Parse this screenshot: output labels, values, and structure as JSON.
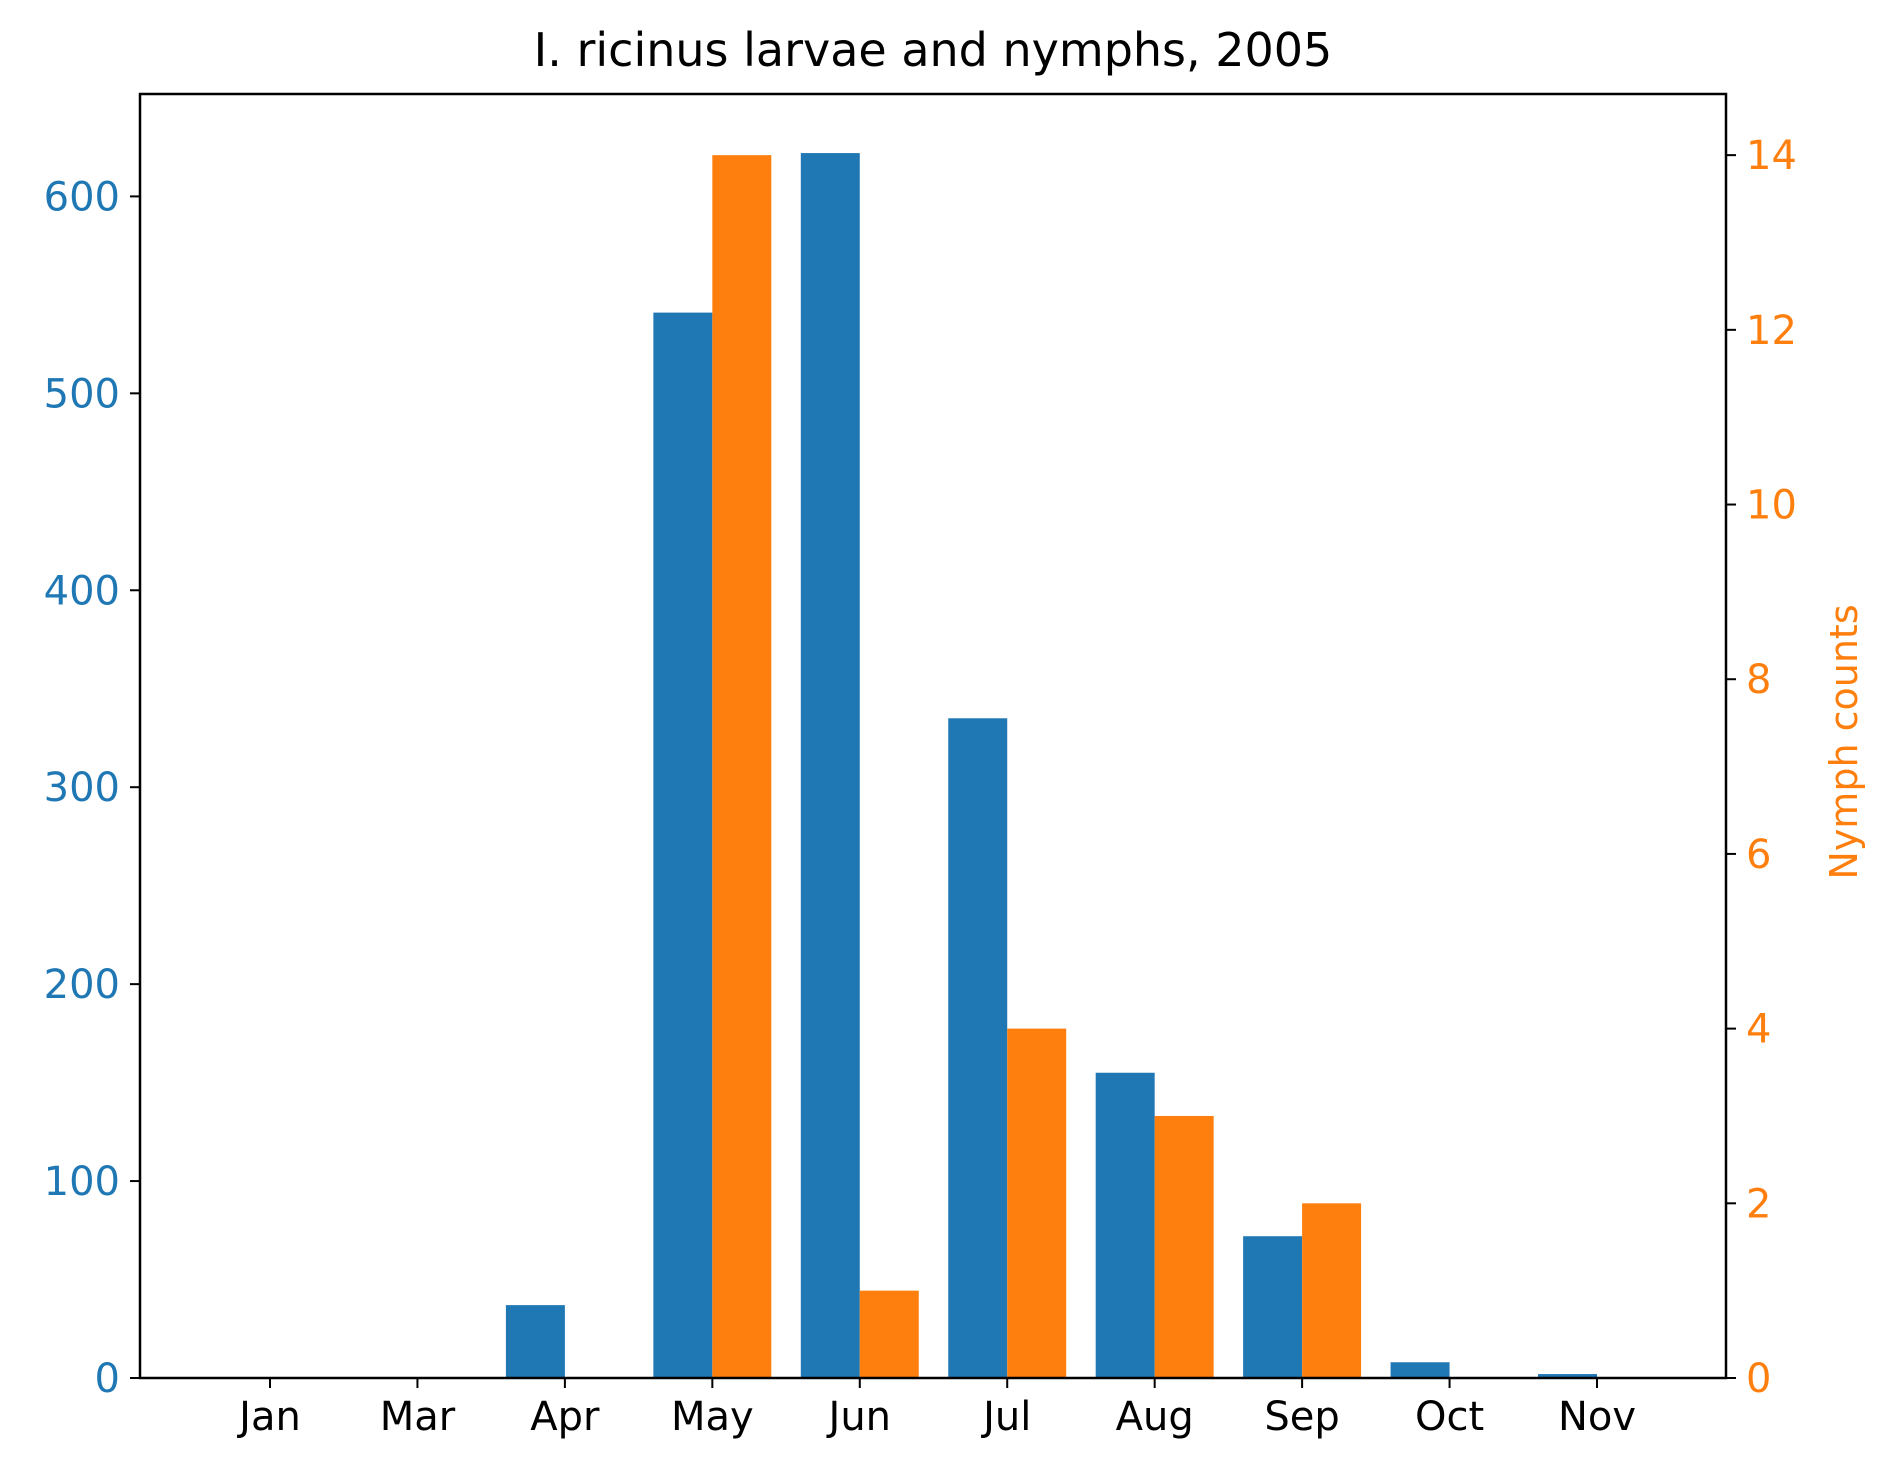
{
  "chart_data": {
    "type": "bar",
    "title": "I. ricinus larvae and nymphs, 2005",
    "xlabel": "",
    "categories": [
      "Jan",
      "Mar",
      "Apr",
      "May",
      "Jun",
      "Jul",
      "Aug",
      "Sep",
      "Oct",
      "Nov"
    ],
    "series": [
      {
        "axis": "left",
        "color": "#1f77b4",
        "values": [
          0,
          0,
          37,
          541,
          622,
          335,
          155,
          72,
          8,
          2
        ]
      },
      {
        "name": "Nymph counts",
        "axis": "right",
        "color": "#ff7f0e",
        "values": [
          0,
          0,
          0,
          14,
          1,
          4,
          3,
          2,
          0,
          0
        ]
      }
    ],
    "ylabel": "",
    "ylim": [
      0,
      652
    ],
    "yticks": [
      0,
      100,
      200,
      300,
      400,
      500,
      600
    ],
    "y2label": "Nymph counts",
    "y2lim": [
      0,
      14.7
    ],
    "y2ticks": [
      0,
      2,
      4,
      6,
      8,
      10,
      12,
      14
    ],
    "grid": false,
    "legend": "none"
  }
}
